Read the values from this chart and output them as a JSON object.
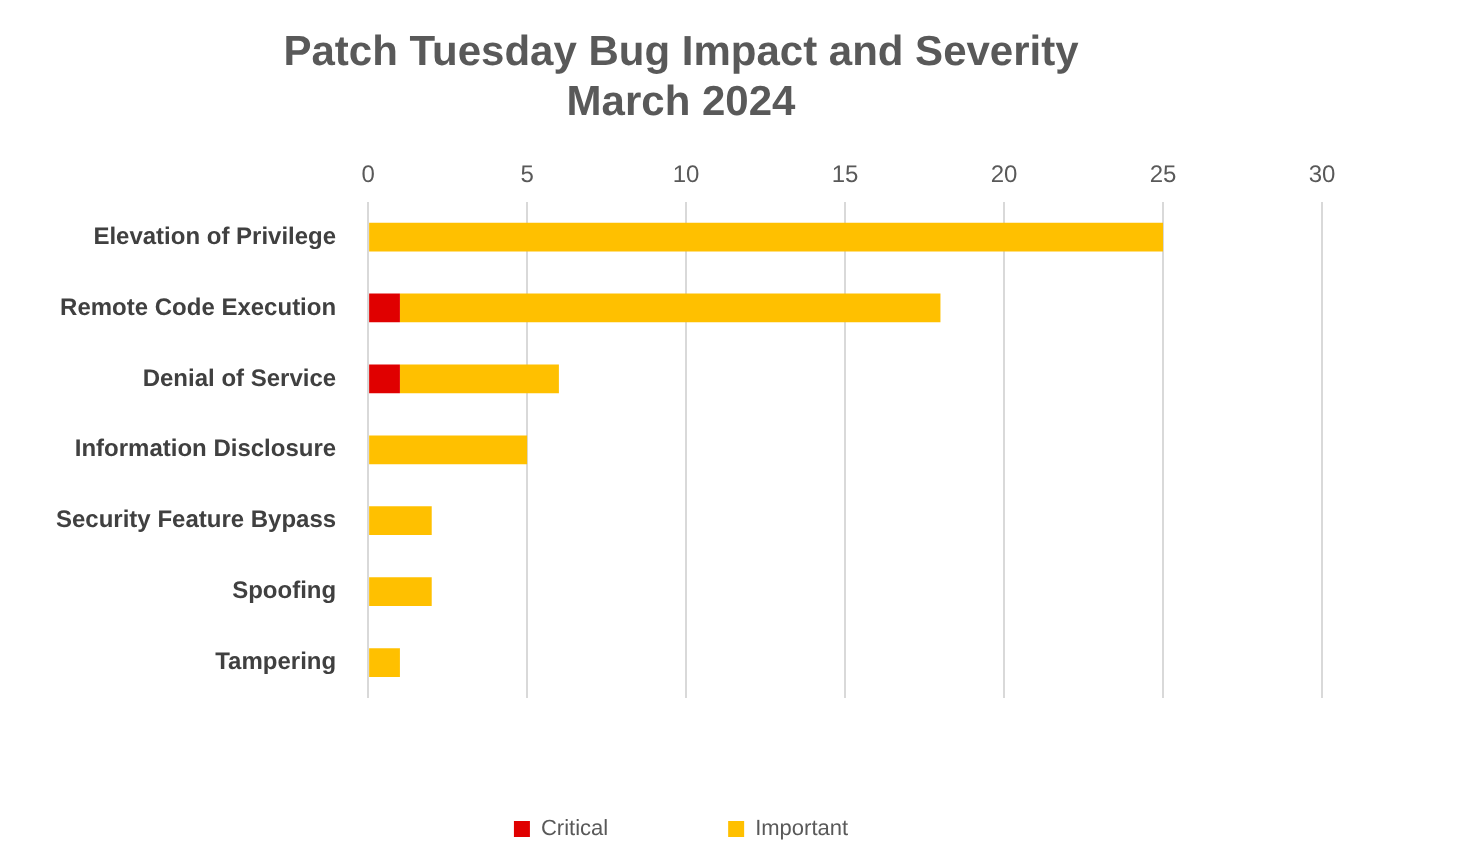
{
  "chart_data": {
    "type": "bar",
    "orientation": "horizontal",
    "stacked": true,
    "title": [
      "Patch Tuesday Bug Impact and Severity",
      "March 2024"
    ],
    "categories": [
      "Elevation of Privilege",
      "Remote Code Execution",
      "Denial of Service",
      "Information Disclosure",
      "Security Feature Bypass",
      "Spoofing",
      "Tampering"
    ],
    "series": [
      {
        "name": "Critical",
        "color": "#e00000",
        "values": [
          0,
          1,
          1,
          0,
          0,
          0,
          0
        ]
      },
      {
        "name": "Important",
        "color": "#ffc000",
        "values": [
          25,
          17,
          5,
          5,
          2,
          2,
          1
        ]
      }
    ],
    "xlim": [
      0,
      30
    ],
    "xticks": [
      0,
      5,
      10,
      15,
      20,
      25,
      30
    ],
    "grid": "x",
    "legend": "bottom"
  }
}
